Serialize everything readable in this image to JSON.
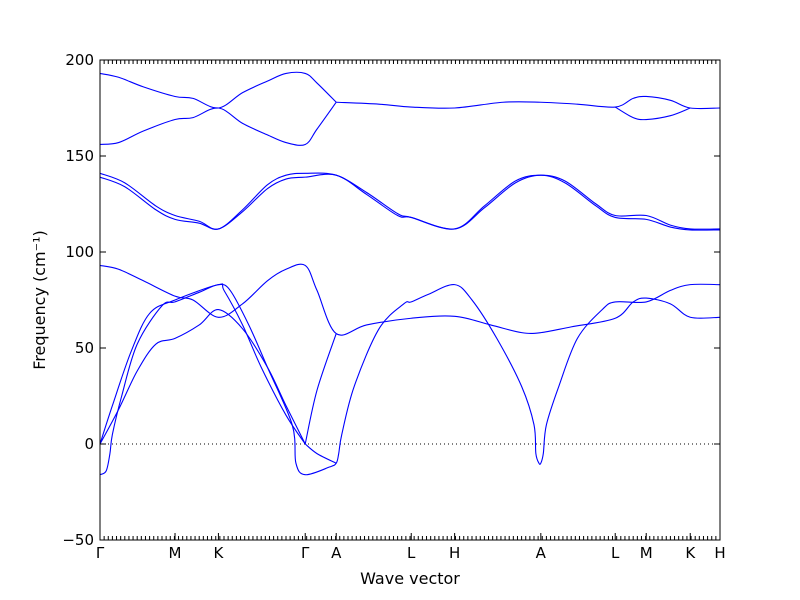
{
  "chart_data": {
    "type": "line",
    "title": "",
    "xlabel": "Wave vector",
    "ylabel": "Frequency (cm⁻¹)",
    "ylim": [
      -50,
      200
    ],
    "yticks": [
      -50,
      0,
      50,
      100,
      150,
      200
    ],
    "reference_line": {
      "y": 0,
      "style": "dotted"
    },
    "grid": false,
    "series_color": "#0000ff",
    "xlim": [
      0,
      1
    ],
    "high_symmetry_points": [
      {
        "label": "Γ",
        "x": 0.0
      },
      {
        "label": "M",
        "x": 0.121
      },
      {
        "label": "K",
        "x": 0.191
      },
      {
        "label": "Γ",
        "x": 0.331
      },
      {
        "label": "A",
        "x": 0.381
      },
      {
        "label": "L",
        "x": 0.502
      },
      {
        "label": "H",
        "x": 0.572
      },
      {
        "label": "A",
        "x": 0.711
      },
      {
        "label": "L",
        "x": 0.831
      },
      {
        "label": "M",
        "x": 0.881
      },
      {
        "label": "K",
        "x": 0.952
      },
      {
        "label": "H",
        "x": 1.0
      }
    ],
    "series": [
      {
        "points": [
          [
            0.0,
            193
          ],
          [
            0.03,
            191
          ],
          [
            0.07,
            186
          ],
          [
            0.121,
            181
          ],
          [
            0.15,
            180
          ],
          [
            0.191,
            175
          ],
          [
            0.23,
            183
          ],
          [
            0.27,
            189
          ],
          [
            0.3,
            193
          ],
          [
            0.331,
            193
          ],
          [
            0.35,
            188
          ],
          [
            0.381,
            178
          ]
        ]
      },
      {
        "points": [
          [
            0.0,
            156
          ],
          [
            0.03,
            157
          ],
          [
            0.07,
            163
          ],
          [
            0.121,
            169
          ],
          [
            0.15,
            170
          ],
          [
            0.191,
            175
          ],
          [
            0.23,
            167
          ],
          [
            0.27,
            161
          ],
          [
            0.3,
            157
          ],
          [
            0.331,
            156
          ],
          [
            0.35,
            164
          ],
          [
            0.381,
            178
          ]
        ]
      },
      {
        "points": [
          [
            0.381,
            178
          ],
          [
            0.45,
            177
          ],
          [
            0.502,
            175.5
          ],
          [
            0.572,
            175
          ],
          [
            0.65,
            178
          ],
          [
            0.711,
            178
          ],
          [
            0.77,
            177
          ],
          [
            0.831,
            175.5
          ],
          [
            0.86,
            180
          ],
          [
            0.881,
            181
          ],
          [
            0.92,
            179
          ],
          [
            0.952,
            175
          ],
          [
            1.0,
            175
          ]
        ]
      },
      {
        "points": [
          [
            0.831,
            175.5
          ],
          [
            0.86,
            170
          ],
          [
            0.881,
            169
          ],
          [
            0.92,
            171
          ],
          [
            0.952,
            175
          ]
        ]
      },
      {
        "points": [
          [
            0.0,
            141
          ],
          [
            0.04,
            136
          ],
          [
            0.09,
            124
          ],
          [
            0.121,
            119
          ],
          [
            0.16,
            116
          ],
          [
            0.191,
            112
          ],
          [
            0.23,
            122
          ],
          [
            0.27,
            135
          ],
          [
            0.3,
            140
          ],
          [
            0.331,
            141
          ],
          [
            0.381,
            140
          ],
          [
            0.43,
            131
          ],
          [
            0.48,
            120
          ],
          [
            0.502,
            118
          ],
          [
            0.572,
            112
          ],
          [
            0.62,
            124
          ],
          [
            0.67,
            137
          ],
          [
            0.711,
            140
          ],
          [
            0.75,
            137
          ],
          [
            0.8,
            125
          ],
          [
            0.831,
            119
          ],
          [
            0.881,
            119
          ],
          [
            0.92,
            114
          ],
          [
            0.952,
            112
          ],
          [
            1.0,
            112
          ]
        ]
      },
      {
        "points": [
          [
            0.0,
            139
          ],
          [
            0.04,
            134
          ],
          [
            0.09,
            122
          ],
          [
            0.121,
            117
          ],
          [
            0.16,
            115
          ],
          [
            0.191,
            112
          ],
          [
            0.23,
            121
          ],
          [
            0.27,
            133
          ],
          [
            0.3,
            138
          ],
          [
            0.331,
            139
          ],
          [
            0.381,
            140
          ],
          [
            0.43,
            130
          ],
          [
            0.48,
            119
          ],
          [
            0.502,
            118
          ],
          [
            0.572,
            112
          ],
          [
            0.62,
            123
          ],
          [
            0.67,
            136
          ],
          [
            0.711,
            140
          ],
          [
            0.75,
            136
          ],
          [
            0.8,
            124
          ],
          [
            0.831,
            118
          ],
          [
            0.881,
            117
          ],
          [
            0.92,
            113
          ],
          [
            0.952,
            111.5
          ],
          [
            1.0,
            111.5
          ]
        ]
      },
      {
        "points": [
          [
            0.0,
            93
          ],
          [
            0.03,
            91
          ],
          [
            0.07,
            85
          ],
          [
            0.121,
            77
          ],
          [
            0.15,
            75
          ],
          [
            0.191,
            66
          ],
          [
            0.23,
            73
          ],
          [
            0.27,
            85
          ],
          [
            0.3,
            91
          ],
          [
            0.331,
            93
          ],
          [
            0.35,
            80
          ],
          [
            0.381,
            57.5
          ],
          [
            0.43,
            62
          ],
          [
            0.502,
            65.5
          ],
          [
            0.572,
            66.5
          ],
          [
            0.63,
            62
          ],
          [
            0.68,
            58
          ],
          [
            0.711,
            58
          ],
          [
            0.76,
            61
          ],
          [
            0.831,
            65.5
          ],
          [
            0.86,
            74
          ],
          [
            0.881,
            76
          ],
          [
            0.92,
            73
          ],
          [
            0.952,
            66
          ],
          [
            1.0,
            66
          ]
        ]
      },
      {
        "points": [
          [
            0.0,
            0
          ],
          [
            0.02,
            20
          ],
          [
            0.05,
            48
          ],
          [
            0.08,
            68
          ],
          [
            0.121,
            75
          ],
          [
            0.191,
            83
          ],
          [
            0.2,
            80
          ],
          [
            0.23,
            62
          ],
          [
            0.26,
            40
          ],
          [
            0.3,
            15
          ],
          [
            0.331,
            0
          ]
        ]
      },
      {
        "points": [
          [
            0.0,
            0
          ],
          [
            0.03,
            18
          ],
          [
            0.06,
            38
          ],
          [
            0.09,
            52
          ],
          [
            0.121,
            55
          ],
          [
            0.16,
            62
          ],
          [
            0.191,
            70
          ],
          [
            0.23,
            60
          ],
          [
            0.27,
            40
          ],
          [
            0.3,
            20
          ],
          [
            0.331,
            0
          ]
        ]
      },
      {
        "points": [
          [
            0.331,
            0
          ],
          [
            0.35,
            -5
          ],
          [
            0.381,
            -10
          ]
        ]
      },
      {
        "points": [
          [
            0.331,
            0
          ],
          [
            0.35,
            28
          ],
          [
            0.381,
            57.5
          ]
        ]
      },
      {
        "points": [
          [
            0.0,
            -16
          ],
          [
            0.01,
            -14
          ],
          [
            0.016,
            -5
          ],
          [
            0.02,
            5
          ],
          [
            0.035,
            25
          ],
          [
            0.06,
            52
          ],
          [
            0.1,
            72
          ],
          [
            0.121,
            74
          ],
          [
            0.16,
            79
          ],
          [
            0.191,
            83
          ],
          [
            0.21,
            80
          ],
          [
            0.24,
            62
          ],
          [
            0.27,
            40
          ],
          [
            0.31,
            10
          ],
          [
            0.316,
            -10
          ],
          [
            0.331,
            -16
          ],
          [
            0.37,
            -12
          ],
          [
            0.381,
            -10
          ],
          [
            0.385,
            -5
          ],
          [
            0.39,
            5
          ],
          [
            0.41,
            30
          ],
          [
            0.45,
            60
          ],
          [
            0.49,
            73
          ],
          [
            0.502,
            74
          ],
          [
            0.53,
            78
          ],
          [
            0.572,
            83
          ],
          [
            0.6,
            75
          ],
          [
            0.64,
            55
          ],
          [
            0.68,
            30
          ],
          [
            0.7,
            10
          ],
          [
            0.703,
            -5
          ],
          [
            0.708,
            -10
          ],
          [
            0.711,
            -10
          ],
          [
            0.715,
            -5
          ],
          [
            0.72,
            10
          ],
          [
            0.74,
            30
          ],
          [
            0.77,
            55
          ],
          [
            0.81,
            70
          ],
          [
            0.831,
            74
          ],
          [
            0.881,
            74
          ],
          [
            0.92,
            80
          ],
          [
            0.952,
            83
          ],
          [
            1.0,
            83
          ]
        ]
      }
    ]
  }
}
